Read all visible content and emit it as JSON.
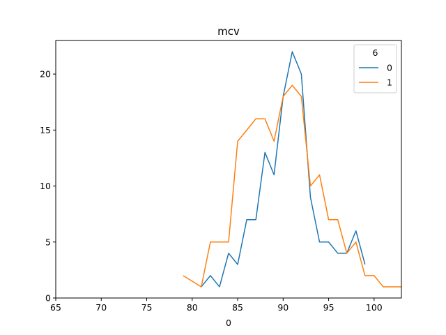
{
  "chart_data": {
    "type": "line",
    "title": "mcv",
    "xlabel": "0",
    "ylabel": "",
    "xlim": [
      65,
      103
    ],
    "ylim": [
      0,
      23
    ],
    "xticks": [
      65,
      70,
      75,
      80,
      85,
      90,
      95,
      100
    ],
    "yticks": [
      0,
      5,
      10,
      15,
      20
    ],
    "grid": false,
    "legend": {
      "title": "6",
      "placement": "top-right"
    },
    "series": [
      {
        "name": "0",
        "color": "#1f77b4",
        "x": [
          81,
          82,
          83,
          84,
          85,
          86,
          87,
          88,
          89,
          90,
          91,
          92,
          93,
          94,
          95,
          96,
          97,
          98,
          99
        ],
        "y": [
          1,
          2,
          1,
          4,
          3,
          7,
          7,
          13,
          11,
          18,
          22,
          20,
          9,
          5,
          5,
          4,
          4,
          6,
          3
        ]
      },
      {
        "name": "1",
        "color": "#ff7f0e",
        "x": [
          79,
          81,
          82,
          83,
          84,
          85,
          86,
          87,
          88,
          89,
          90,
          91,
          92,
          93,
          94,
          95,
          96,
          97,
          98,
          99,
          100,
          101,
          102,
          103
        ],
        "y": [
          2,
          1,
          5,
          5,
          5,
          14,
          15,
          16,
          16,
          14,
          18,
          19,
          18,
          10,
          11,
          7,
          7,
          4,
          5,
          2,
          2,
          1,
          1,
          1
        ]
      }
    ]
  }
}
